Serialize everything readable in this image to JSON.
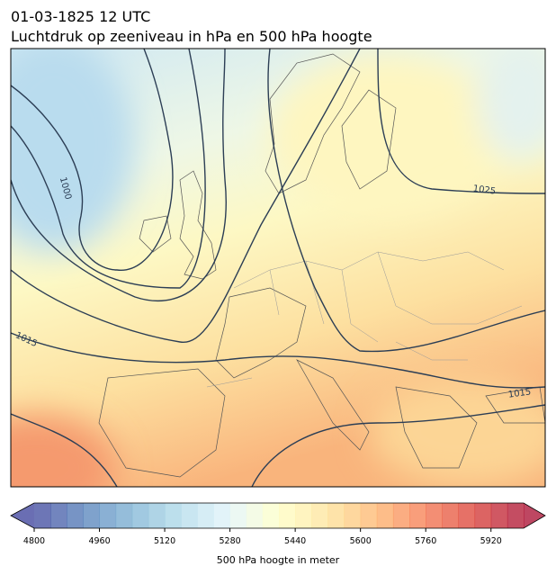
{
  "header": {
    "date": "01-03-1825 12 UTC",
    "title": "Luchtdruk op zeeniveau in hPa en 500 hPa hoogte"
  },
  "isobar_labels": [
    1000,
    1025,
    1015,
    1015
  ],
  "colorbar": {
    "label": "500 hPa hoogte in meter",
    "lim": [
      4800,
      6000
    ],
    "ticks": [
      4800,
      4960,
      5120,
      5280,
      5440,
      5600,
      5760,
      5920
    ]
  }
}
